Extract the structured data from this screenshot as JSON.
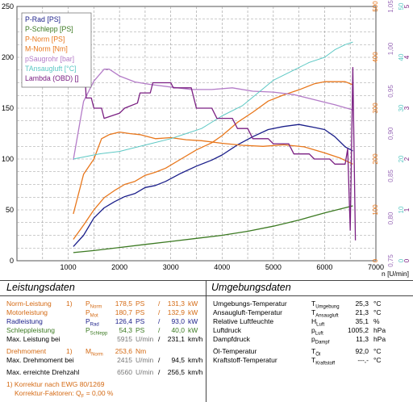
{
  "chart_data": {
    "type": "line",
    "x_axis": {
      "label": "n [U/min]",
      "range": [
        0,
        7000
      ],
      "ticks": [
        "1000",
        "2000",
        "3000",
        "4000",
        "5000",
        "6000",
        "7000"
      ]
    },
    "left_axis": {
      "range": [
        0,
        250
      ],
      "ticks": [
        "0",
        "50",
        "100",
        "150",
        "200",
        "250"
      ]
    },
    "right_axes": [
      {
        "color": "#e8771c",
        "range": [
          0,
          500
        ],
        "ticks": [
          "0",
          "100",
          "200",
          "300",
          "400",
          "500"
        ]
      },
      {
        "color": "#9a6cb8",
        "range": [
          0.75,
          1.05
        ],
        "ticks": [
          "0,75",
          "0,80",
          "0,85",
          "0,90",
          "0,95",
          "1,00",
          "1,05"
        ]
      },
      {
        "color": "#5cc8c4",
        "range": [
          0,
          50
        ],
        "ticks": [
          "0",
          "10",
          "20",
          "30",
          "40",
          "50"
        ]
      },
      {
        "color": "#7a1f82",
        "range": [
          0,
          5
        ],
        "ticks": [
          "0",
          "1",
          "2",
          "3",
          "4",
          "5"
        ]
      }
    ],
    "grid": true,
    "legend": {
      "placement": "top-left",
      "entries": [
        {
          "text": "P-Rad [PS]",
          "color": "#1b1f8a"
        },
        {
          "text": "P-Schlepp [PS]",
          "color": "#3c7a22"
        },
        {
          "text": "P-Norm [PS]",
          "color": "#e8771c"
        },
        {
          "text": "M-Norm [Nm]",
          "color": "#e8771c"
        },
        {
          "text": "pSaugrohr [bar]",
          "color": "#b47cc8"
        },
        {
          "text": "TAnsaugluft [°C]",
          "color": "#5cc8c4"
        },
        {
          "text": "Lambda (OBD) []",
          "color": "#7a1f82"
        }
      ]
    },
    "series": [
      {
        "name": "P-Rad [PS]",
        "color": "#1b1f8a",
        "axis": "left",
        "x": [
          1100,
          1300,
          1500,
          1700,
          1900,
          2100,
          2300,
          2500,
          2700,
          2900,
          3200,
          3500,
          3800,
          4000,
          4300,
          4600,
          4900,
          5200,
          5500,
          5800,
          6000,
          6200,
          6400,
          6550
        ],
        "y": [
          14,
          25,
          42,
          52,
          58,
          63,
          66,
          72,
          74,
          78,
          86,
          93,
          99,
          104,
          114,
          122,
          129,
          132,
          134,
          131,
          129,
          122,
          112,
          108
        ]
      },
      {
        "name": "P-Schlepp [PS]",
        "color": "#3c7a22",
        "axis": "left",
        "x": [
          1100,
          1500,
          2000,
          2500,
          3000,
          3500,
          4000,
          4500,
          5000,
          5500,
          6000,
          6550
        ],
        "y": [
          8,
          10,
          13,
          16,
          19,
          22,
          25,
          29,
          34,
          40,
          47,
          54
        ]
      },
      {
        "name": "P-Norm [PS]",
        "color": "#e8771c",
        "axis": "left",
        "x": [
          1100,
          1300,
          1500,
          1700,
          1900,
          2100,
          2300,
          2500,
          2700,
          2900,
          3200,
          3500,
          3800,
          4000,
          4300,
          4600,
          4900,
          5200,
          5500,
          5800,
          6000,
          6200,
          6400,
          6550
        ],
        "y": [
          21,
          35,
          50,
          62,
          69,
          75,
          78,
          84,
          87,
          91,
          100,
          109,
          116,
          123,
          136,
          146,
          157,
          163,
          168,
          174,
          176,
          176,
          176,
          173
        ]
      },
      {
        "name": "M-Norm [Nm]",
        "color": "#e8771c",
        "axis": "right1",
        "x": [
          1100,
          1300,
          1500,
          1650,
          1800,
          2000,
          2200,
          2400,
          2700,
          3000,
          3300,
          3600,
          4000,
          4400,
          4800,
          5200,
          5600,
          6000,
          6300,
          6550
        ],
        "y": [
          92,
          170,
          200,
          240,
          248,
          253,
          250,
          248,
          240,
          242,
          238,
          236,
          231,
          227,
          225,
          228,
          224,
          212,
          202,
          190
        ]
      },
      {
        "name": "pSaugrohr [bar]",
        "color": "#b47cc8",
        "axis": "right2",
        "x": [
          1100,
          1300,
          1500,
          1700,
          1800,
          2000,
          2300,
          2600,
          3000,
          3400,
          3800,
          4200,
          4600,
          5000,
          5400,
          5800,
          6200,
          6550
        ],
        "y": [
          0.869,
          0.938,
          0.962,
          0.976,
          0.976,
          0.968,
          0.961,
          0.958,
          0.955,
          0.952,
          0.952,
          0.954,
          0.95,
          0.949,
          0.946,
          0.94,
          0.934,
          0.928
        ]
      },
      {
        "name": "TAnsaugluft [°C]",
        "color": "#5cc8c4",
        "axis": "right3",
        "x": [
          1100,
          1600,
          2000,
          2200,
          2600,
          3000,
          3300,
          3600,
          4000,
          4400,
          4700,
          5000,
          5400,
          5700,
          6000,
          6200,
          6400,
          6550
        ],
        "y": [
          20,
          21,
          21.5,
          22,
          23,
          24,
          25,
          26,
          28.5,
          30.5,
          33,
          35.5,
          37.5,
          39,
          40,
          41.5,
          42.5,
          43
        ]
      },
      {
        "name": "Lambda (OBD) []",
        "color": "#7a1f82",
        "axis": "right4",
        "x": [
          1300,
          1350,
          1450,
          1500,
          1650,
          1700,
          2000,
          2100,
          2350,
          2400,
          2600,
          2650,
          3000,
          3050,
          3400,
          3500,
          3800,
          3900,
          4200,
          4300,
          4500,
          4600,
          4900,
          5000,
          5300,
          5400,
          5700,
          5800,
          6100,
          6200,
          6400,
          6450,
          6500,
          6550,
          6600
        ],
        "y": [
          4.3,
          3.2,
          3.2,
          3.0,
          3.0,
          2.8,
          2.9,
          3.0,
          3.1,
          3.3,
          3.3,
          3.5,
          3.5,
          3.4,
          3.4,
          3.0,
          3.0,
          2.8,
          2.8,
          2.6,
          2.6,
          2.4,
          2.4,
          2.3,
          2.3,
          2.1,
          2.1,
          2.0,
          2.0,
          1.9,
          1.9,
          2.2,
          0.6,
          3.8,
          0.4
        ]
      }
    ]
  },
  "left_panel": {
    "title": "Leistungsdaten",
    "rows": [
      {
        "label": "Norm-Leistung",
        "note": "1)",
        "sym": "PNorm",
        "v1": "178,5",
        "u1": "PS",
        "sep": "/",
        "v2": "131,3",
        "u2": "kW",
        "color": "#d46a14"
      },
      {
        "label": "Motorleistung",
        "note": "",
        "sym": "PMot",
        "v1": "180,7",
        "u1": "PS",
        "sep": "/",
        "v2": "132,9",
        "u2": "kW",
        "color": "#d46a14"
      },
      {
        "label": "Radleistung",
        "note": "",
        "sym": "PRad",
        "v1": "126,4",
        "u1": "PS",
        "sep": "/",
        "v2": "93,0",
        "u2": "kW",
        "color": "#1b1f8a"
      },
      {
        "label": "Schleppleistung",
        "note": "",
        "sym": "PSchlepp",
        "v1": "54,3",
        "u1": "PS",
        "sep": "/",
        "v2": "40,0",
        "u2": "kW",
        "color": "#3c7a22"
      },
      {
        "label": "Max. Leistung bei",
        "note": "",
        "sym": "",
        "v1": "5915",
        "u1": "U/min",
        "sep": "/",
        "v2": "231,1",
        "u2": "km/h",
        "color": "#000000"
      },
      {
        "label": "Drehmoment",
        "note": "1)",
        "sym": "MNorm",
        "v1": "253,6",
        "u1": "Nm",
        "sep": "",
        "v2": "",
        "u2": "",
        "color": "#d46a14"
      },
      {
        "label": "Max. Drehmoment bei",
        "note": "",
        "sym": "",
        "v1": "2415",
        "u1": "U/min",
        "sep": "/",
        "v2": "94,5",
        "u2": "km/h",
        "color": "#000000"
      },
      {
        "label": "Max. erreichte Drehzahl",
        "note": "",
        "sym": "",
        "v1": "6560",
        "u1": "U/min",
        "sep": "/",
        "v2": "256,5",
        "u2": "km/h",
        "color": "#000000"
      }
    ],
    "footnote1": "1) Korrektur nach EWG 80/1269",
    "footnote2": "Korrektur-Faktoren: Q",
    "footnote2_sub": "F",
    "footnote2_val": " =  0,00 %"
  },
  "right_panel": {
    "title": "Umgebungsdaten",
    "rows": [
      {
        "label": "Umgebungs-Temperatur",
        "sym": "T",
        "sub": "Umgebung",
        "val": "25,3",
        "unit": "°C"
      },
      {
        "label": "Ansaugluft-Temperatur",
        "sym": "T",
        "sub": "Ansaugluft",
        "val": "21,3",
        "unit": "°C"
      },
      {
        "label": "Relative Luftfeuchte",
        "sym": "H",
        "sub": "Luft",
        "val": "35,1",
        "unit": "%"
      },
      {
        "label": "Luftdruck",
        "sym": "p",
        "sub": "Luft",
        "val": "1005,2",
        "unit": "hPa"
      },
      {
        "label": "Dampfdruck",
        "sym": "p",
        "sub": "Dampf",
        "val": "11,3",
        "unit": "hPa"
      },
      {
        "label": "Öl-Temperatur",
        "sym": "T",
        "sub": "Öl",
        "val": "92,0",
        "unit": "°C"
      },
      {
        "label": "Kraftstoff-Temperatur",
        "sym": "T",
        "sub": "Kraftstoff",
        "val": "---,-",
        "unit": "°C"
      }
    ]
  }
}
